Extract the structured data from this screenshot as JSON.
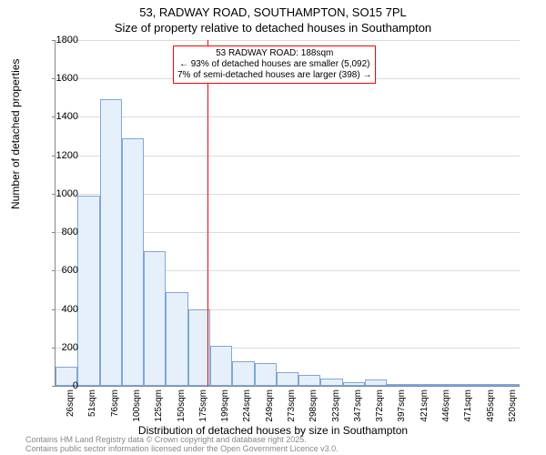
{
  "title_line1": "53, RADWAY ROAD, SOUTHAMPTON, SO15 7PL",
  "title_line2": "Size of property relative to detached houses in Southampton",
  "y_axis_label": "Number of detached properties",
  "x_axis_label": "Distribution of detached houses by size in Southampton",
  "chart": {
    "type": "histogram",
    "background_color": "#ffffff",
    "grid_color": "#dcdcdc",
    "axis_color": "#888888",
    "bar_fill": "#e6f0fa",
    "bar_border": "#7da7d9",
    "marker_line_color": "#ff0000",
    "marker_value": 188,
    "ylim": [
      0,
      1800
    ],
    "ytick_step": 200,
    "yticks": [
      0,
      200,
      400,
      600,
      800,
      1000,
      1200,
      1400,
      1600,
      1800
    ],
    "xticks": [
      "26sqm",
      "51sqm",
      "76sqm",
      "100sqm",
      "125sqm",
      "150sqm",
      "175sqm",
      "199sqm",
      "224sqm",
      "249sqm",
      "273sqm",
      "298sqm",
      "323sqm",
      "347sqm",
      "372sqm",
      "397sqm",
      "421sqm",
      "446sqm",
      "471sqm",
      "495sqm",
      "520sqm"
    ],
    "values": [
      100,
      990,
      1490,
      1290,
      700,
      490,
      400,
      210,
      130,
      120,
      70,
      55,
      40,
      20,
      35,
      10,
      5,
      4,
      3,
      2,
      2
    ],
    "title_fontsize": 13,
    "label_fontsize": 12,
    "tick_fontsize": 11
  },
  "annotation": {
    "line1": "53 RADWAY ROAD: 188sqm",
    "line2": "← 93% of detached houses are smaller (5,092)",
    "line3": "7% of semi-detached houses are larger (398) →",
    "border_color": "#ff0000"
  },
  "footer_line1": "Contains HM Land Registry data © Crown copyright and database right 2025.",
  "footer_line2": "Contains public sector information licensed under the Open Government Licence v3.0."
}
